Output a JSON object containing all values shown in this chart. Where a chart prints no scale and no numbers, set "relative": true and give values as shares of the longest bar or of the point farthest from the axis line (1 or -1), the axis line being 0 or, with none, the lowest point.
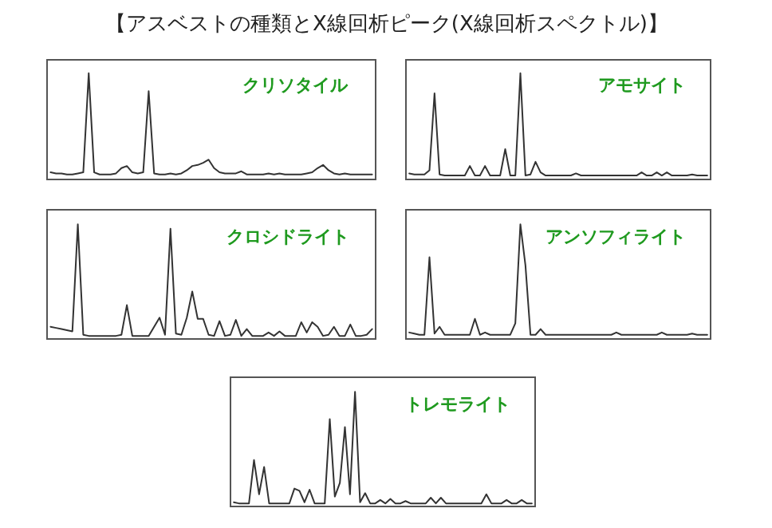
{
  "chart_data": [
    {
      "type": "line",
      "title": "クリソタイル",
      "relative": true,
      "marker": "none",
      "line_style": "solid",
      "annotations": [
        "【アスベストの種類とX線回析ピーク(X線回析スペクトル)】"
      ],
      "categories": [
        null,
        null,
        null,
        null,
        null,
        null,
        null,
        null,
        null,
        null,
        null,
        null,
        null,
        null,
        null,
        null,
        null,
        null,
        null,
        null,
        null,
        null,
        null,
        null,
        null,
        null,
        null,
        null,
        null,
        null,
        null,
        null,
        null,
        null,
        null,
        null,
        null,
        null,
        null,
        null,
        null,
        null,
        null,
        null,
        null,
        null,
        null,
        null,
        null,
        null,
        null,
        null,
        null,
        null,
        null,
        null,
        null,
        null,
        null,
        null
      ],
      "series": [
        {
          "color": "#333333",
          "values": [
            0.06,
            0.05,
            0.05,
            0.04,
            0.04,
            0.05,
            0.06,
            1.0,
            0.06,
            0.04,
            0.04,
            0.04,
            0.05,
            0.1,
            0.12,
            0.06,
            0.05,
            0.06,
            0.83,
            0.05,
            0.04,
            0.04,
            0.05,
            0.04,
            0.05,
            0.08,
            0.12,
            0.13,
            0.15,
            0.18,
            0.1,
            0.06,
            0.05,
            0.05,
            0.05,
            0.07,
            0.04,
            0.04,
            0.04,
            0.04,
            0.05,
            0.04,
            0.05,
            0.04,
            0.04,
            0.04,
            0.04,
            0.05,
            0.06,
            0.1,
            0.13,
            0.08,
            0.05,
            0.04,
            0.05,
            0.04,
            0.04,
            0.04,
            0.04,
            0.04
          ]
        }
      ]
    },
    {
      "type": "line",
      "title": "アモサイト",
      "relative": true,
      "marker": "none",
      "line_style": "solid",
      "categories": [
        null,
        null,
        null,
        null,
        null,
        null,
        null,
        null,
        null,
        null,
        null,
        null,
        null,
        null,
        null,
        null,
        null,
        null,
        null,
        null,
        null,
        null,
        null,
        null,
        null,
        null,
        null,
        null,
        null,
        null,
        null,
        null,
        null,
        null,
        null,
        null,
        null,
        null,
        null,
        null,
        null,
        null,
        null,
        null,
        null,
        null,
        null,
        null,
        null,
        null,
        null,
        null,
        null,
        null,
        null,
        null,
        null,
        null,
        null,
        null
      ],
      "series": [
        {
          "color": "#333333",
          "values": [
            0.05,
            0.04,
            0.04,
            0.04,
            0.08,
            0.81,
            0.04,
            0.03,
            0.03,
            0.03,
            0.03,
            0.03,
            0.12,
            0.03,
            0.03,
            0.12,
            0.03,
            0.03,
            0.03,
            0.28,
            0.03,
            0.03,
            1.0,
            0.03,
            0.04,
            0.16,
            0.06,
            0.03,
            0.03,
            0.03,
            0.03,
            0.03,
            0.03,
            0.05,
            0.03,
            0.03,
            0.03,
            0.03,
            0.03,
            0.03,
            0.03,
            0.03,
            0.03,
            0.03,
            0.03,
            0.03,
            0.06,
            0.03,
            0.03,
            0.06,
            0.03,
            0.06,
            0.03,
            0.03,
            0.03,
            0.03,
            0.04,
            0.03,
            0.03,
            0.03
          ]
        }
      ]
    },
    {
      "type": "line",
      "title": "クロシドライト",
      "relative": true,
      "marker": "none",
      "line_style": "solid",
      "categories": [
        null,
        null,
        null,
        null,
        null,
        null,
        null,
        null,
        null,
        null,
        null,
        null,
        null,
        null,
        null,
        null,
        null,
        null,
        null,
        null,
        null,
        null,
        null,
        null,
        null,
        null,
        null,
        null,
        null,
        null,
        null,
        null,
        null,
        null,
        null,
        null,
        null,
        null,
        null,
        null,
        null,
        null,
        null,
        null,
        null,
        null,
        null,
        null,
        null,
        null,
        null,
        null,
        null,
        null,
        null,
        null,
        null,
        null,
        null,
        null
      ],
      "series": [
        {
          "color": "#333333",
          "values": [
            0.1,
            0.09,
            0.08,
            0.07,
            0.06,
            1.0,
            0.03,
            0.02,
            0.02,
            0.02,
            0.02,
            0.02,
            0.02,
            0.03,
            0.29,
            0.02,
            0.02,
            0.02,
            0.02,
            0.1,
            0.18,
            0.03,
            0.96,
            0.04,
            0.03,
            0.18,
            0.41,
            0.17,
            0.17,
            0.03,
            0.02,
            0.15,
            0.02,
            0.03,
            0.16,
            0.02,
            0.08,
            0.02,
            0.02,
            0.02,
            0.05,
            0.02,
            0.06,
            0.02,
            0.02,
            0.02,
            0.14,
            0.05,
            0.14,
            0.1,
            0.02,
            0.03,
            0.1,
            0.02,
            0.02,
            0.12,
            0.02,
            0.02,
            0.03,
            0.08
          ]
        }
      ]
    },
    {
      "type": "line",
      "title": "アンソフィライト",
      "relative": true,
      "marker": "none",
      "line_style": "solid",
      "categories": [
        null,
        null,
        null,
        null,
        null,
        null,
        null,
        null,
        null,
        null,
        null,
        null,
        null,
        null,
        null,
        null,
        null,
        null,
        null,
        null,
        null,
        null,
        null,
        null,
        null,
        null,
        null,
        null,
        null,
        null,
        null,
        null,
        null,
        null,
        null,
        null,
        null,
        null,
        null,
        null,
        null,
        null,
        null,
        null,
        null,
        null,
        null,
        null,
        null,
        null,
        null,
        null,
        null,
        null,
        null,
        null,
        null,
        null,
        null,
        null
      ],
      "series": [
        {
          "color": "#333333",
          "values": [
            0.05,
            0.04,
            0.03,
            0.03,
            0.71,
            0.04,
            0.1,
            0.03,
            0.03,
            0.03,
            0.03,
            0.03,
            0.03,
            0.17,
            0.03,
            0.05,
            0.03,
            0.03,
            0.03,
            0.03,
            0.03,
            0.13,
            1.0,
            0.64,
            0.03,
            0.03,
            0.08,
            0.03,
            0.03,
            0.03,
            0.03,
            0.03,
            0.03,
            0.03,
            0.03,
            0.03,
            0.03,
            0.03,
            0.03,
            0.03,
            0.03,
            0.05,
            0.03,
            0.03,
            0.03,
            0.03,
            0.03,
            0.03,
            0.03,
            0.03,
            0.05,
            0.03,
            0.03,
            0.03,
            0.03,
            0.03,
            0.04,
            0.03,
            0.03,
            0.03
          ]
        }
      ]
    },
    {
      "type": "line",
      "title": "トレモライト",
      "relative": true,
      "marker": "none",
      "line_style": "solid",
      "categories": [
        null,
        null,
        null,
        null,
        null,
        null,
        null,
        null,
        null,
        null,
        null,
        null,
        null,
        null,
        null,
        null,
        null,
        null,
        null,
        null,
        null,
        null,
        null,
        null,
        null,
        null,
        null,
        null,
        null,
        null,
        null,
        null,
        null,
        null,
        null,
        null,
        null,
        null,
        null,
        null,
        null,
        null,
        null,
        null,
        null,
        null,
        null,
        null,
        null,
        null,
        null,
        null,
        null,
        null,
        null,
        null,
        null,
        null,
        null,
        null
      ],
      "series": [
        {
          "color": "#333333",
          "values": [
            0.03,
            0.02,
            0.02,
            0.02,
            0.4,
            0.1,
            0.34,
            0.02,
            0.02,
            0.02,
            0.02,
            0.02,
            0.15,
            0.13,
            0.03,
            0.14,
            0.02,
            0.02,
            0.02,
            0.76,
            0.08,
            0.2,
            0.69,
            0.1,
            1.0,
            0.03,
            0.11,
            0.02,
            0.02,
            0.05,
            0.02,
            0.06,
            0.02,
            0.02,
            0.04,
            0.02,
            0.02,
            0.02,
            0.02,
            0.07,
            0.02,
            0.07,
            0.02,
            0.02,
            0.02,
            0.02,
            0.02,
            0.02,
            0.02,
            0.02,
            0.1,
            0.02,
            0.02,
            0.02,
            0.05,
            0.02,
            0.02,
            0.05,
            0.02,
            0.02
          ]
        }
      ]
    }
  ]
}
